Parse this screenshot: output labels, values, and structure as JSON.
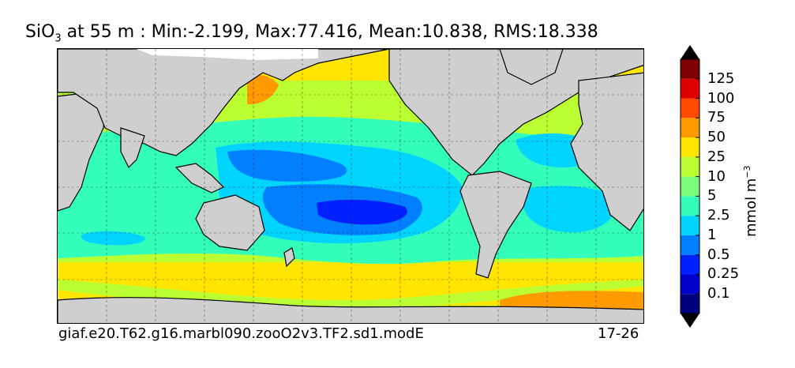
{
  "title": {
    "species": "SiO",
    "subscript": "3",
    "rest": " at 55 m : Min:-2.199, Max:77.416, Mean:10.838, RMS:18.338"
  },
  "footer": {
    "case_name": "giaf.e20.T62.g16.marbl090.zooO2v3.TF2.sd1.modE",
    "years": "17-26"
  },
  "colorbar": {
    "unit_label": "mmol m",
    "unit_exponent": "−3",
    "ticks": [
      "0.1",
      "0.25",
      "0.5",
      "1",
      "2.5",
      "5",
      "10",
      "25",
      "50",
      "75",
      "100",
      "125"
    ],
    "colors": [
      "#00007f",
      "#0000cc",
      "#0020ff",
      "#0080ff",
      "#00d4ff",
      "#33ffbb",
      "#7bff7b",
      "#bbff33",
      "#ffe500",
      "#ff9a00",
      "#ff4a00",
      "#e00000",
      "#7f0000"
    ]
  },
  "map_colors": {
    "land": "#cfcfcf",
    "ice": "#ffffff"
  }
}
